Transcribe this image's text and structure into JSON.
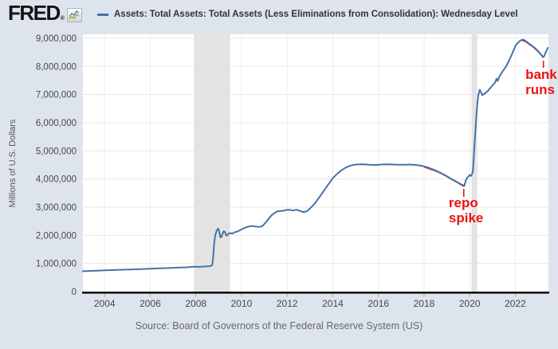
{
  "header": {
    "logo_text": "FRED",
    "registered_mark": "®",
    "legend_label": "Assets: Total Assets: Total Assets (Less Eliminations from Consolidation): Wednesday Level"
  },
  "source": {
    "text": "Source: Board of Governors of the Federal Reserve System (US)"
  },
  "colors": {
    "series_blue": "#4572a7",
    "annotation_red": "#ee1111",
    "background": "#dde4ee",
    "recession_band": "#e3e3e3"
  },
  "chart_data": {
    "type": "line",
    "title": "",
    "xlabel": "",
    "ylabel": "Millions of U.S. Dollars",
    "xlim": [
      2003.05,
      2023.45
    ],
    "ylim": [
      0,
      9140000
    ],
    "x_ticks": [
      2004,
      2006,
      2008,
      2010,
      2012,
      2014,
      2016,
      2018,
      2020,
      2022
    ],
    "y_ticks": [
      0,
      1000000,
      2000000,
      3000000,
      4000000,
      5000000,
      6000000,
      7000000,
      8000000,
      9000000
    ],
    "grid": true,
    "legend_position": "top",
    "recession_bands": [
      [
        2007.92,
        2009.5
      ],
      [
        2020.08,
        2020.33
      ]
    ],
    "series": [
      {
        "name": "Assets: Total Assets: Total Assets (Less Eliminations from Consolidation): Wednesday Level",
        "color": "#4572a7",
        "points": [
          [
            2003.05,
            725000
          ],
          [
            2003.3,
            732000
          ],
          [
            2003.6,
            742000
          ],
          [
            2004,
            755000
          ],
          [
            2004.4,
            766000
          ],
          [
            2004.8,
            777000
          ],
          [
            2005.2,
            789000
          ],
          [
            2005.6,
            800000
          ],
          [
            2006,
            814000
          ],
          [
            2006.4,
            826000
          ],
          [
            2006.8,
            839000
          ],
          [
            2007.2,
            852000
          ],
          [
            2007.6,
            864000
          ],
          [
            2007.95,
            888000
          ],
          [
            2008.1,
            878000
          ],
          [
            2008.3,
            889000
          ],
          [
            2008.5,
            898000
          ],
          [
            2008.65,
            908000
          ],
          [
            2008.72,
            945000
          ],
          [
            2008.76,
            1250000
          ],
          [
            2008.8,
            1700000
          ],
          [
            2008.85,
            2000000
          ],
          [
            2008.92,
            2180000
          ],
          [
            2008.98,
            2240000
          ],
          [
            2009.03,
            2110000
          ],
          [
            2009.08,
            1925000
          ],
          [
            2009.13,
            1955000
          ],
          [
            2009.18,
            2080000
          ],
          [
            2009.23,
            2145000
          ],
          [
            2009.28,
            2110000
          ],
          [
            2009.33,
            1990000
          ],
          [
            2009.38,
            2005000
          ],
          [
            2009.43,
            2060000
          ],
          [
            2009.5,
            2080000
          ],
          [
            2009.6,
            2062000
          ],
          [
            2009.7,
            2110000
          ],
          [
            2009.8,
            2128000
          ],
          [
            2009.9,
            2168000
          ],
          [
            2010,
            2210000
          ],
          [
            2010.15,
            2268000
          ],
          [
            2010.3,
            2308000
          ],
          [
            2010.45,
            2330000
          ],
          [
            2010.6,
            2318000
          ],
          [
            2010.75,
            2298000
          ],
          [
            2010.9,
            2320000
          ],
          [
            2011,
            2400000
          ],
          [
            2011.15,
            2550000
          ],
          [
            2011.3,
            2700000
          ],
          [
            2011.45,
            2800000
          ],
          [
            2011.6,
            2858000
          ],
          [
            2011.8,
            2868000
          ],
          [
            2011.95,
            2898000
          ],
          [
            2012.1,
            2908000
          ],
          [
            2012.25,
            2878000
          ],
          [
            2012.4,
            2908000
          ],
          [
            2012.55,
            2868000
          ],
          [
            2012.7,
            2828000
          ],
          [
            2012.85,
            2848000
          ],
          [
            2013,
            2948000
          ],
          [
            2013.2,
            3120000
          ],
          [
            2013.4,
            3340000
          ],
          [
            2013.6,
            3570000
          ],
          [
            2013.8,
            3800000
          ],
          [
            2014,
            4030000
          ],
          [
            2014.2,
            4190000
          ],
          [
            2014.4,
            4320000
          ],
          [
            2014.6,
            4420000
          ],
          [
            2014.8,
            4480000
          ],
          [
            2015,
            4512000
          ],
          [
            2015.3,
            4525000
          ],
          [
            2015.6,
            4508000
          ],
          [
            2015.9,
            4500000
          ],
          [
            2016.2,
            4515000
          ],
          [
            2016.5,
            4523000
          ],
          [
            2016.8,
            4510000
          ],
          [
            2017.1,
            4505000
          ],
          [
            2017.4,
            4512000
          ],
          [
            2017.7,
            4495000
          ],
          [
            2017.95,
            4460000
          ],
          [
            2018.2,
            4400000
          ],
          [
            2018.45,
            4320000
          ],
          [
            2018.7,
            4230000
          ],
          [
            2018.95,
            4120000
          ],
          [
            2019.2,
            4000000
          ],
          [
            2019.45,
            3890000
          ],
          [
            2019.65,
            3800000
          ],
          [
            2019.77,
            3760000
          ],
          [
            2019.8,
            3870000
          ],
          [
            2019.85,
            3990000
          ],
          [
            2019.92,
            4070000
          ],
          [
            2020,
            4140000
          ],
          [
            2020.05,
            4110000
          ],
          [
            2020.1,
            4170000
          ],
          [
            2020.14,
            4280000
          ],
          [
            2020.18,
            4800000
          ],
          [
            2020.23,
            5450000
          ],
          [
            2020.28,
            6100000
          ],
          [
            2020.33,
            6650000
          ],
          [
            2020.38,
            6980000
          ],
          [
            2020.44,
            7170000
          ],
          [
            2020.5,
            7080000
          ],
          [
            2020.55,
            6980000
          ],
          [
            2020.62,
            7010000
          ],
          [
            2020.7,
            7060000
          ],
          [
            2020.8,
            7130000
          ],
          [
            2020.9,
            7230000
          ],
          [
            2021,
            7330000
          ],
          [
            2021.1,
            7410000
          ],
          [
            2021.18,
            7560000
          ],
          [
            2021.22,
            7480000
          ],
          [
            2021.3,
            7640000
          ],
          [
            2021.45,
            7830000
          ],
          [
            2021.6,
            8000000
          ],
          [
            2021.75,
            8250000
          ],
          [
            2021.9,
            8520000
          ],
          [
            2022,
            8720000
          ],
          [
            2022.1,
            8830000
          ],
          [
            2022.2,
            8900000
          ],
          [
            2022.3,
            8950000
          ],
          [
            2022.4,
            8930000
          ],
          [
            2022.5,
            8870000
          ],
          [
            2022.6,
            8810000
          ],
          [
            2022.7,
            8750000
          ],
          [
            2022.8,
            8690000
          ],
          [
            2022.9,
            8620000
          ],
          [
            2023,
            8540000
          ],
          [
            2023.1,
            8440000
          ],
          [
            2023.17,
            8370000
          ],
          [
            2023.24,
            8330000
          ],
          [
            2023.42,
            8660000
          ]
        ]
      }
    ],
    "red_overlays": [
      {
        "points": [
          [
            2018.0,
            4430000
          ],
          [
            2018.25,
            4360000
          ],
          [
            2018.5,
            4290000
          ],
          [
            2018.75,
            4200000
          ],
          [
            2019.0,
            4090000
          ],
          [
            2019.25,
            3970000
          ],
          [
            2019.5,
            3860000
          ],
          [
            2019.65,
            3780000
          ],
          [
            2019.76,
            3740000
          ]
        ]
      },
      {
        "points": [
          [
            2022.3,
            8920000
          ],
          [
            2022.45,
            8880000
          ],
          [
            2022.6,
            8790000
          ],
          [
            2022.75,
            8710000
          ],
          [
            2022.9,
            8600000
          ],
          [
            2023.05,
            8490000
          ],
          [
            2023.15,
            8400000
          ],
          [
            2023.23,
            8310000
          ]
        ]
      }
    ],
    "annotations": [
      {
        "text": "repo spike",
        "x": 2019.08,
        "y": 3396000,
        "color": "#ee1111",
        "tick": {
          "x": 2019.74,
          "y1": 3650000,
          "y2": 3367000
        }
      },
      {
        "text": "bank runs",
        "x": 2022.44,
        "y": 7950000,
        "color": "#ee1111",
        "tick": {
          "x": 2023.23,
          "y1": 8200000,
          "y2": 7950000
        }
      }
    ]
  }
}
